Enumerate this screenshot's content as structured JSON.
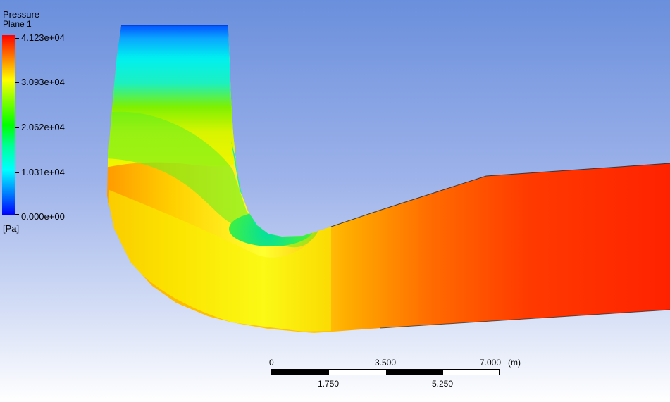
{
  "legend": {
    "title": "Pressure",
    "subtitle": "Plane 1",
    "labels": [
      "4.123e+04",
      "3.093e+04",
      "2.062e+04",
      "1.031e+04",
      "0.000e+00"
    ],
    "unit": "[Pa]",
    "colormap": [
      "#ff0000",
      "#ff7a00",
      "#ffff00",
      "#7fff00",
      "#00ff00",
      "#00ff9a",
      "#00ffff",
      "#0080ff",
      "#0000ff"
    ]
  },
  "scale_bar": {
    "top_labels": [
      "0",
      "3.500",
      "7.000"
    ],
    "bottom_labels": [
      "1.750",
      "5.250"
    ],
    "unit": "(m)"
  },
  "colors": {
    "background_top": "#6a8fdc",
    "background_bottom": "#ffffff"
  }
}
